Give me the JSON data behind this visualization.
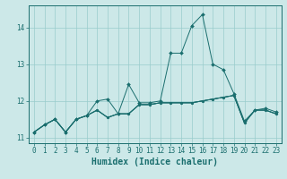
{
  "title": "",
  "xlabel": "Humidex (Indice chaleur)",
  "bg_color": "#cce8e8",
  "grid_color_minor": "#bbdddd",
  "grid_color_major": "#99cccc",
  "line_color": "#1a6e6e",
  "xlim": [
    -0.5,
    23.5
  ],
  "ylim": [
    10.85,
    14.6
  ],
  "yticks": [
    11,
    12,
    13,
    14
  ],
  "xticks": [
    0,
    1,
    2,
    3,
    4,
    5,
    6,
    7,
    8,
    9,
    10,
    11,
    12,
    13,
    14,
    15,
    16,
    17,
    18,
    19,
    20,
    21,
    22,
    23
  ],
  "series": [
    [
      11.15,
      11.35,
      11.5,
      11.15,
      11.5,
      11.6,
      12.0,
      12.05,
      11.65,
      12.45,
      11.95,
      11.95,
      12.0,
      13.3,
      13.3,
      14.05,
      14.35,
      13.0,
      12.85,
      12.2,
      11.45,
      11.75,
      11.8,
      11.7
    ],
    [
      11.15,
      11.35,
      11.5,
      11.15,
      11.5,
      11.6,
      11.75,
      11.55,
      11.65,
      11.65,
      11.9,
      11.9,
      11.95,
      11.95,
      11.95,
      11.95,
      12.0,
      12.05,
      12.1,
      12.15,
      11.4,
      11.75,
      11.75,
      11.65
    ],
    [
      11.15,
      11.35,
      11.5,
      11.15,
      11.5,
      11.6,
      11.75,
      11.55,
      11.65,
      11.65,
      11.9,
      11.9,
      11.95,
      11.95,
      11.95,
      11.95,
      12.0,
      12.05,
      12.1,
      12.15,
      11.4,
      11.75,
      11.75,
      11.65
    ],
    [
      11.15,
      11.35,
      11.5,
      11.15,
      11.5,
      11.6,
      11.75,
      11.55,
      11.65,
      11.65,
      11.9,
      11.9,
      11.95,
      11.95,
      11.95,
      11.95,
      12.0,
      12.05,
      12.1,
      12.15,
      11.4,
      11.75,
      11.75,
      11.65
    ]
  ],
  "font_size": 6.5,
  "xlabel_fontsize": 7,
  "tick_fontsize": 5.5
}
